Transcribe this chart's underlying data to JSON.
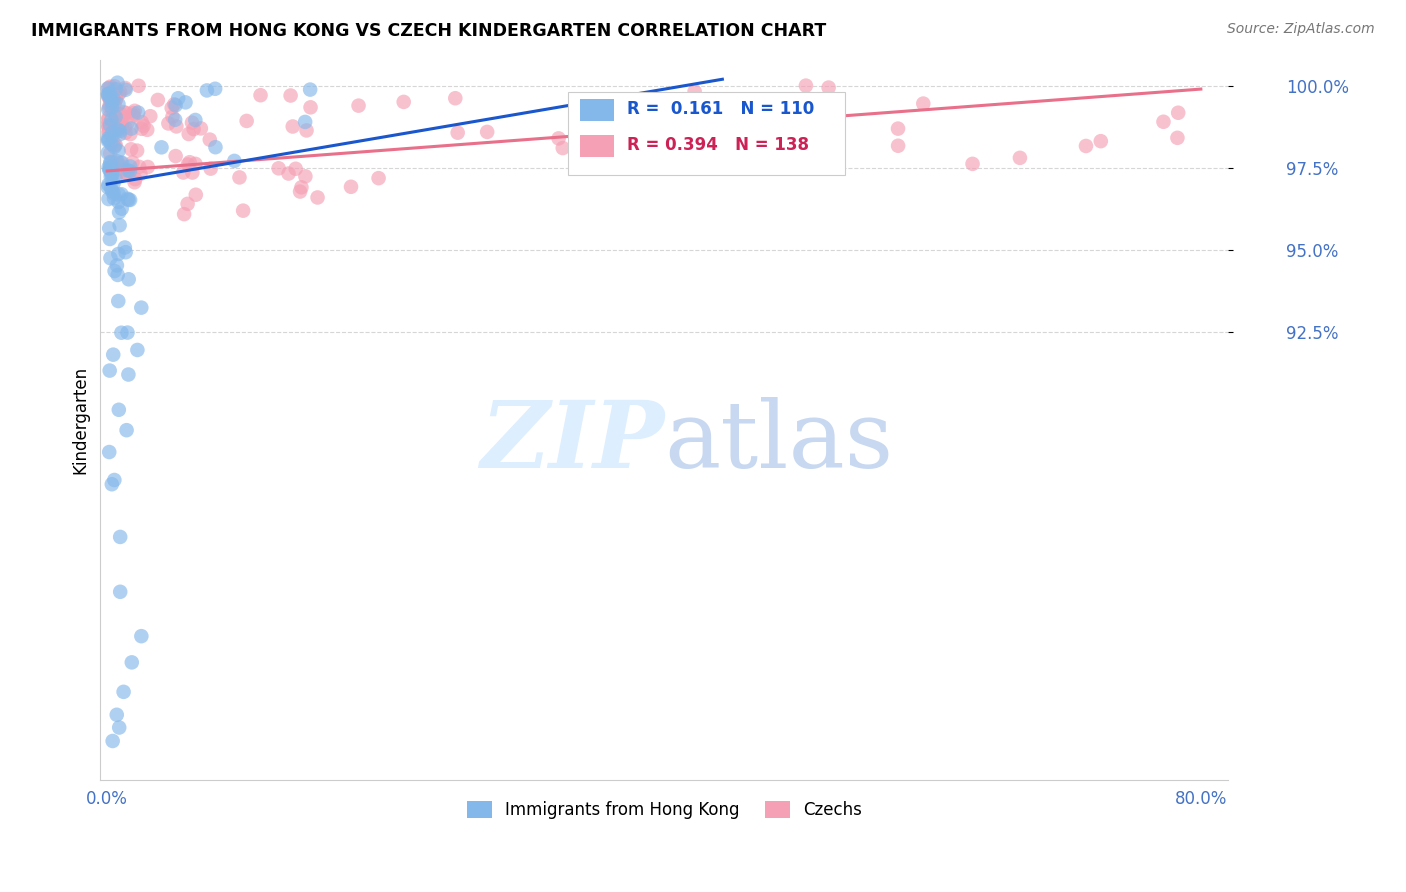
{
  "title": "IMMIGRANTS FROM HONG KONG VS CZECH KINDERGARTEN CORRELATION CHART",
  "source": "Source: ZipAtlas.com",
  "ylabel": "Kindergarten",
  "ytick_labels": [
    "92.5%",
    "95.0%",
    "97.5%",
    "100.0%"
  ],
  "ytick_values": [
    0.925,
    0.95,
    0.975,
    1.0
  ],
  "xlim": [
    -0.005,
    0.82
  ],
  "ylim": [
    0.788,
    1.008
  ],
  "legend_blue_R": "0.161",
  "legend_blue_N": "110",
  "legend_pink_R": "0.394",
  "legend_pink_N": "138",
  "blue_color": "#85B8EA",
  "pink_color": "#F5A0B5",
  "blue_line_color": "#1A56CC",
  "pink_line_color": "#E8708A",
  "watermark_color": "#DDEEFF",
  "blue_line": [
    [
      0.0,
      0.97
    ],
    [
      0.45,
      1.002
    ]
  ],
  "pink_line": [
    [
      0.0,
      0.974
    ],
    [
      0.8,
      0.999
    ]
  ]
}
